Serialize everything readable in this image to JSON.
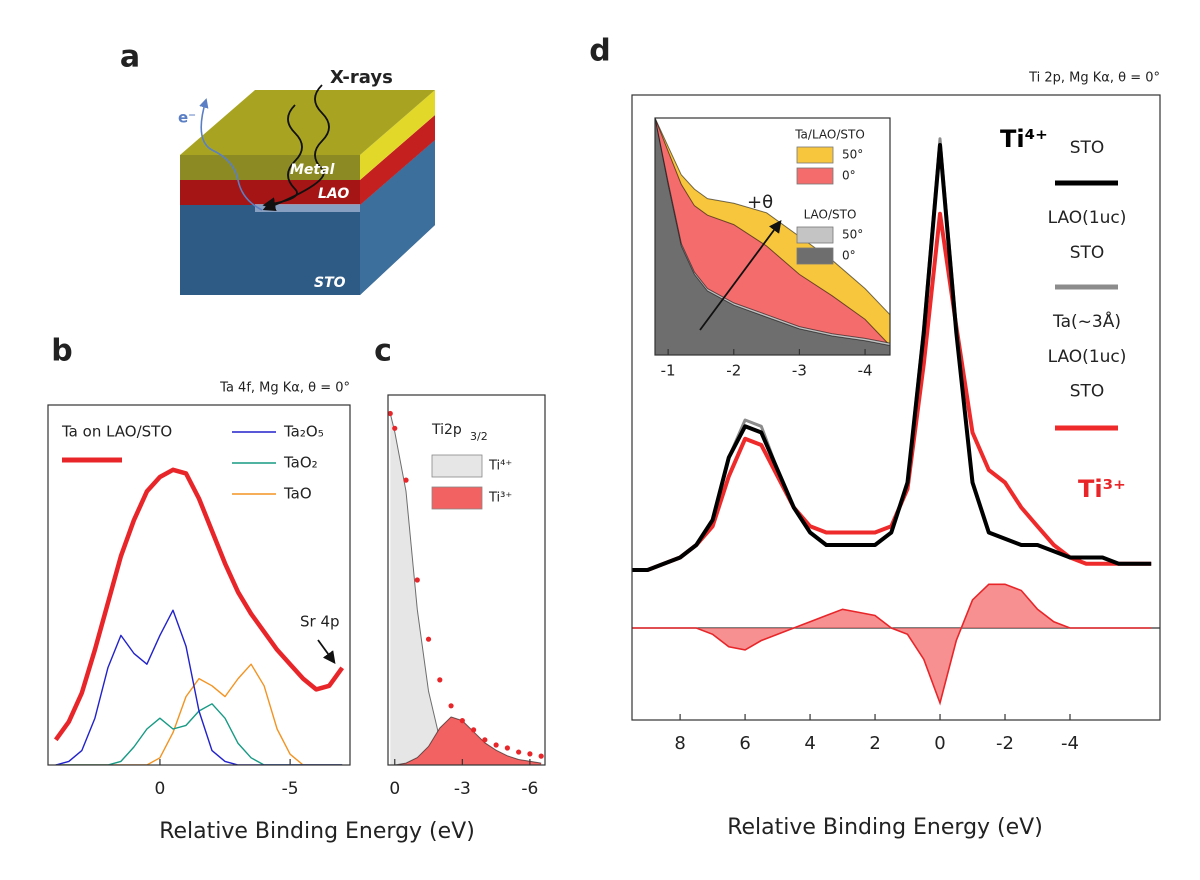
{
  "diagram": {
    "panel": "a",
    "labels": {
      "xrays": "X-rays",
      "electron": "e⁻",
      "metal": "Metal",
      "lao": "LAO",
      "sto": "STO"
    }
  },
  "chart_data": [
    {
      "type": "line",
      "panel": "b",
      "subtitle": "Ta 4f, Mg Kα, θ = 0°",
      "xlabel": "Relative Binding Energy (eV)",
      "xlim": [
        4.3,
        -7.3
      ],
      "xticks": [
        0,
        -5
      ],
      "ylim": [
        0,
        1
      ],
      "x": [
        4,
        3.5,
        3,
        2.5,
        2,
        1.5,
        1,
        0.5,
        0,
        -0.5,
        -1,
        -1.5,
        -2,
        -2.5,
        -3,
        -3.5,
        -4,
        -4.5,
        -5,
        -5.5,
        -6,
        -6.5,
        -7
      ],
      "series": [
        {
          "name": "Ta on LAO/STO",
          "color": "#e8262a",
          "values": [
            0.07,
            0.12,
            0.2,
            0.32,
            0.45,
            0.58,
            0.68,
            0.76,
            0.8,
            0.82,
            0.81,
            0.74,
            0.65,
            0.56,
            0.48,
            0.42,
            0.37,
            0.32,
            0.28,
            0.24,
            0.21,
            0.22,
            0.27
          ]
        },
        {
          "name": "Ta₂O₅",
          "color": "#2222cc",
          "values": [
            0,
            0.01,
            0.04,
            0.13,
            0.27,
            0.36,
            0.31,
            0.28,
            0.36,
            0.43,
            0.33,
            0.15,
            0.04,
            0.01,
            0,
            0,
            0,
            0,
            0,
            0,
            0,
            0,
            0
          ]
        },
        {
          "name": "TaO₂",
          "color": "#169a84",
          "values": [
            0,
            0,
            0,
            0,
            0,
            0.01,
            0.05,
            0.1,
            0.13,
            0.1,
            0.11,
            0.15,
            0.17,
            0.13,
            0.06,
            0.02,
            0,
            0,
            0,
            0,
            0,
            0,
            0
          ]
        },
        {
          "name": "TaO",
          "color": "#f39321",
          "values": [
            0,
            0,
            0,
            0,
            0,
            0,
            0,
            0,
            0.02,
            0.09,
            0.19,
            0.24,
            0.22,
            0.19,
            0.24,
            0.28,
            0.22,
            0.1,
            0.03,
            0,
            0,
            0,
            0
          ]
        }
      ],
      "annotations": [
        {
          "text": "Sr 4p"
        }
      ]
    },
    {
      "type": "area",
      "panel": "c",
      "legend_title": "Ti2p",
      "legend_title_sub": "3/2",
      "xlim": [
        0.3,
        -6.67
      ],
      "xticks": [
        0,
        -3,
        -6
      ],
      "ylim": [
        0,
        1
      ],
      "x": [
        0.2,
        0,
        -0.5,
        -1,
        -1.5,
        -2,
        -2.5,
        -3,
        -3.5,
        -4,
        -4.5,
        -5,
        -5.5,
        -6,
        -6.5
      ],
      "series": [
        {
          "style": "points",
          "color": "#e8262a",
          "values": [
            0.95,
            0.91,
            0.77,
            0.5,
            0.34,
            0.23,
            0.16,
            0.12,
            0.095,
            0.068,
            0.054,
            0.046,
            0.035,
            0.03,
            0.024
          ]
        },
        {
          "name": "Ti⁴⁺",
          "style": "area",
          "color": "#e6e6e6",
          "values": [
            0.95,
            0.9,
            0.74,
            0.42,
            0.2,
            0.07,
            0.02,
            0.005,
            0,
            0,
            0,
            0,
            0,
            0,
            0
          ]
        },
        {
          "name": "Ti³⁺",
          "style": "area",
          "color": "#f26262",
          "values": [
            0,
            0,
            0.005,
            0.02,
            0.05,
            0.1,
            0.13,
            0.12,
            0.09,
            0.06,
            0.04,
            0.025,
            0.015,
            0.01,
            0.005
          ]
        }
      ]
    },
    {
      "type": "line",
      "panel": "d",
      "subtitle": "Ti 2p, Mg Kα, θ = 0°",
      "xlabel": "Relative Binding Energy (eV)",
      "xlim": [
        9.48,
        -6.77
      ],
      "xticks": [
        8,
        6,
        4,
        2,
        0,
        -2,
        -4
      ],
      "ylim": [
        0,
        1
      ],
      "x": [
        9.5,
        9,
        8.5,
        8,
        7.5,
        7,
        6.5,
        6,
        5.5,
        5,
        4.5,
        4,
        3.5,
        3,
        2.5,
        2,
        1.5,
        1,
        0.5,
        0,
        -0.5,
        -1,
        -1.5,
        -2,
        -2.5,
        -3,
        -3.5,
        -4,
        -4.5,
        -5,
        -5.5,
        -6,
        -6.5
      ],
      "series": [
        {
          "name": "STO",
          "color": "#000000",
          "values": [
            0.24,
            0.24,
            0.25,
            0.26,
            0.28,
            0.32,
            0.42,
            0.47,
            0.46,
            0.4,
            0.34,
            0.3,
            0.28,
            0.28,
            0.28,
            0.28,
            0.3,
            0.38,
            0.62,
            0.92,
            0.62,
            0.38,
            0.3,
            0.29,
            0.28,
            0.28,
            0.27,
            0.26,
            0.26,
            0.26,
            0.25,
            0.25,
            0.25
          ]
        },
        {
          "name": "LAO(1uc)\nSTO",
          "color": "#8c8c8c",
          "values": [
            0.24,
            0.24,
            0.25,
            0.26,
            0.28,
            0.32,
            0.42,
            0.48,
            0.47,
            0.4,
            0.34,
            0.3,
            0.28,
            0.28,
            0.28,
            0.28,
            0.3,
            0.38,
            0.63,
            0.93,
            0.63,
            0.38,
            0.3,
            0.29,
            0.28,
            0.28,
            0.27,
            0.26,
            0.26,
            0.26,
            0.25,
            0.25,
            0.25
          ]
        },
        {
          "name": "Ta(~3Å)\nLAO(1uc)\nSTO",
          "color": "#ee2a2a",
          "values": [
            0.24,
            0.24,
            0.25,
            0.26,
            0.28,
            0.31,
            0.39,
            0.45,
            0.44,
            0.39,
            0.34,
            0.31,
            0.3,
            0.3,
            0.3,
            0.3,
            0.31,
            0.37,
            0.57,
            0.81,
            0.63,
            0.46,
            0.4,
            0.38,
            0.34,
            0.31,
            0.28,
            0.26,
            0.25,
            0.25,
            0.25,
            0.25,
            0.25
          ]
        }
      ],
      "difference": {
        "color": "#f46c6c",
        "values": [
          0,
          0,
          0,
          0,
          0,
          -0.01,
          -0.03,
          -0.035,
          -0.02,
          -0.01,
          0,
          0.01,
          0.02,
          0.03,
          0.025,
          0.02,
          0,
          -0.01,
          -0.05,
          -0.12,
          -0.02,
          0.045,
          0.07,
          0.07,
          0.06,
          0.03,
          0.01,
          0,
          0,
          0,
          0,
          0,
          0
        ]
      },
      "annotations": [
        {
          "text": "Ti⁴⁺",
          "color": "#000000"
        },
        {
          "text": "Ti³⁺",
          "color": "#e8262a"
        }
      ]
    },
    {
      "type": "area",
      "xlim": [
        -0.8,
        -4.38
      ],
      "xticks": [
        -1,
        -2,
        -3,
        -4
      ],
      "ylim": [
        0,
        1
      ],
      "x": [
        -0.8,
        -1,
        -1.2,
        -1.4,
        -1.6,
        -2,
        -2.5,
        -3,
        -3.5,
        -4,
        -4.38
      ],
      "series_groups": [
        {
          "name": "Ta/LAO/STO",
          "series": [
            {
              "name": "50°",
              "style": "area",
              "color": "#f7c63c",
              "values": [
                1,
                0.88,
                0.76,
                0.7,
                0.66,
                0.64,
                0.6,
                0.5,
                0.4,
                0.28,
                0.17
              ]
            },
            {
              "name": "0°",
              "style": "area",
              "color": "#f46c6c",
              "values": [
                1,
                0.86,
                0.72,
                0.63,
                0.59,
                0.55,
                0.46,
                0.34,
                0.25,
                0.15,
                0.04
              ]
            }
          ]
        },
        {
          "name": "LAO/STO",
          "series": [
            {
              "name": "50°",
              "style": "area",
              "color": "#c4c4c4",
              "values": [
                1,
                0.73,
                0.47,
                0.35,
                0.28,
                0.22,
                0.17,
                0.12,
                0.09,
                0.07,
                0.05
              ]
            },
            {
              "name": "0°",
              "style": "area",
              "color": "#6e6e6e",
              "values": [
                1,
                0.72,
                0.46,
                0.34,
                0.27,
                0.21,
                0.16,
                0.11,
                0.08,
                0.06,
                0.04
              ]
            }
          ]
        }
      ],
      "annotations": [
        {
          "text": "+θ"
        }
      ]
    }
  ]
}
